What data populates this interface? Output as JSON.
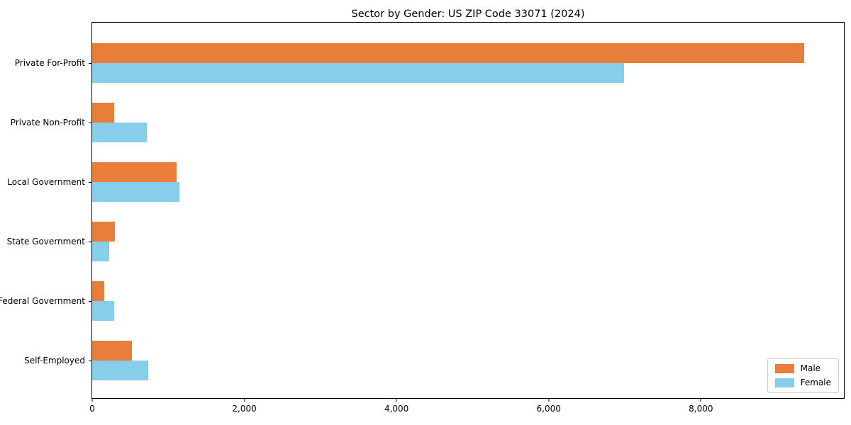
{
  "chart_data": {
    "type": "bar",
    "orientation": "horizontal",
    "title": "Sector by Gender: US ZIP Code 33071 (2024)",
    "xlabel": "",
    "ylabel": "",
    "categories": [
      "Private For-Profit",
      "Private Non-Profit",
      "Local Government",
      "State Government",
      "Federal Government",
      "Self-Employed"
    ],
    "series": [
      {
        "name": "Male",
        "color": "#e87d3c",
        "values": [
          9360,
          290,
          1110,
          300,
          155,
          520
        ]
      },
      {
        "name": "Female",
        "color": "#87ceeb",
        "values": [
          6990,
          720,
          1150,
          220,
          290,
          740
        ]
      }
    ],
    "x_ticks": [
      0,
      2000,
      4000,
      6000,
      8000
    ],
    "x_tick_labels": [
      "0",
      "2,000",
      "4,000",
      "6,000",
      "8,000"
    ],
    "xlim": [
      0,
      9880
    ],
    "grid": false,
    "legend_position": "lower right",
    "axis_color": "#000000"
  }
}
